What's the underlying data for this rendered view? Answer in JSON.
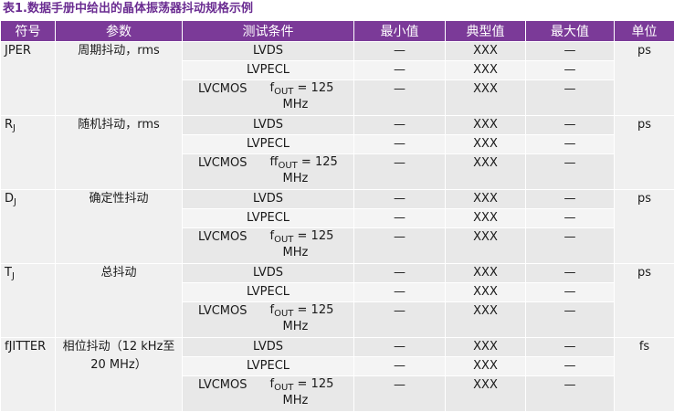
{
  "caption": "表1.数据手册中给出的晶体振荡器抖动规格示例",
  "headers": [
    "符号",
    "参数",
    "测试条件",
    "最小值",
    "典型值",
    "最大值",
    "单位"
  ],
  "groups": [
    {
      "symbol_main": "JPER",
      "symbol_sub": "",
      "parameter": "周期抖动，rms",
      "unit": "ps",
      "rows": [
        {
          "cond": "LVDS",
          "min": "—",
          "typ": "XXX",
          "max": "—"
        },
        {
          "cond": "LVPECL",
          "min": "—",
          "typ": "XXX",
          "max": "—"
        },
        {
          "cond": "LVCMOS",
          "f_prefix": "f",
          "f_sub": "OUT",
          "f_suffix": " = 125",
          "f_line2": "MHz",
          "min": "—",
          "typ": "XXX",
          "max": "—"
        }
      ]
    },
    {
      "symbol_main": "R",
      "symbol_sub": "J",
      "parameter": "随机抖动，rms",
      "unit": "ps",
      "rows": [
        {
          "cond": "LVDS",
          "min": "—",
          "typ": "XXX",
          "max": "—"
        },
        {
          "cond": "LVPECL",
          "min": "—",
          "typ": "XXX",
          "max": "—"
        },
        {
          "cond": "LVCMOS",
          "f_prefix": "ff",
          "f_sub": "OUT",
          "f_suffix": " = 125",
          "f_line2": "MHz",
          "min": "—",
          "typ": "XXX",
          "max": "—"
        }
      ]
    },
    {
      "symbol_main": "D",
      "symbol_sub": "J",
      "parameter": "确定性抖动",
      "unit": "ps",
      "rows": [
        {
          "cond": "LVDS",
          "min": "—",
          "typ": "XXX",
          "max": "—"
        },
        {
          "cond": "LVPECL",
          "min": "—",
          "typ": "XXX",
          "max": "—"
        },
        {
          "cond": "LVCMOS",
          "f_prefix": "f",
          "f_sub": "OUT",
          "f_suffix": " = 125",
          "f_line2": "MHz",
          "min": "—",
          "typ": "XXX",
          "max": "—"
        }
      ]
    },
    {
      "symbol_main": "T",
      "symbol_sub": "J",
      "parameter": "总抖动",
      "unit": "ps",
      "rows": [
        {
          "cond": "LVDS",
          "min": "—",
          "typ": "XXX",
          "max": "—"
        },
        {
          "cond": "LVPECL",
          "min": "—",
          "typ": "XXX",
          "max": "—"
        },
        {
          "cond": "LVCMOS",
          "f_prefix": "f",
          "f_sub": "OUT",
          "f_suffix": " = 125",
          "f_line2": "MHz",
          "min": "—",
          "typ": "XXX",
          "max": "—"
        }
      ]
    },
    {
      "symbol_main": "fJITTER",
      "symbol_sub": "",
      "parameter": "相位抖动（12 kHz至 20 MHz）",
      "unit": "fs",
      "rows": [
        {
          "cond": "LVDS",
          "min": "—",
          "typ": "XXX",
          "max": "—"
        },
        {
          "cond": "LVPECL",
          "min": "—",
          "typ": "XXX",
          "max": "—"
        },
        {
          "cond": "LVCMOS",
          "f_prefix": "f",
          "f_sub": "OUT",
          "f_suffix": " = 125",
          "f_line2": "MHz",
          "min": "—",
          "typ": "XXX",
          "max": "—"
        }
      ]
    }
  ]
}
